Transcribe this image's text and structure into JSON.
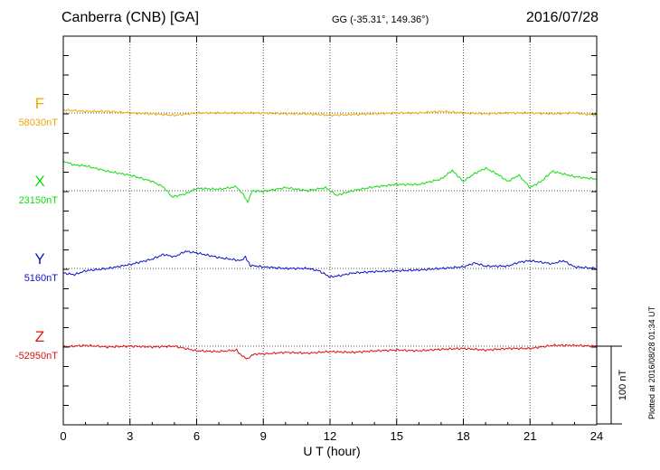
{
  "header": {
    "station": "Canberra (CNB)  [GA]",
    "coords": "GG (-35.31°, 149.36°)",
    "date": "2016/07/28"
  },
  "side_note": "Plotted at 2016/08/28 01:34 UT",
  "colors": {
    "F": "#f0a800",
    "X": "#11dd11",
    "Y": "#1111cc",
    "Z": "#dd1111"
  },
  "chart_data": {
    "type": "line",
    "title": "Canberra (CNB)  [GA]",
    "xlabel": "U T (hour)",
    "xlim": [
      0,
      24
    ],
    "x_ticks": [
      "0",
      "3",
      "6",
      "9",
      "12",
      "15",
      "18",
      "21",
      "24"
    ],
    "grid": true,
    "scale_bar": {
      "label": "100 nT",
      "nT": 100
    },
    "series": [
      {
        "name": "F",
        "baseline_label": "58030nT",
        "color": "#f0a800",
        "x": [
          0,
          1,
          2,
          3,
          4,
          5,
          6,
          7,
          8,
          9,
          10,
          11,
          12,
          13,
          14,
          15,
          16,
          17,
          18,
          19,
          20,
          21,
          22,
          23,
          24
        ],
        "y": [
          4,
          2,
          2,
          0,
          -1,
          -3,
          0,
          0,
          0,
          0,
          -1,
          -1,
          -3,
          -2,
          -1,
          0,
          0,
          2,
          0,
          -1,
          0,
          0,
          -1,
          0,
          -3
        ]
      },
      {
        "name": "X",
        "baseline_label": "23150nT",
        "color": "#11dd11",
        "x": [
          0,
          0.5,
          1,
          2,
          3,
          4,
          4.5,
          4.9,
          5.5,
          6,
          7,
          7.8,
          8.1,
          8.3,
          8.5,
          9,
          10,
          11,
          11.8,
          12.3,
          13,
          14,
          15,
          16,
          17,
          17.5,
          18,
          18.5,
          19,
          19.5,
          20,
          20.5,
          21,
          21.5,
          22,
          23,
          24
        ],
        "y": [
          38,
          33,
          32,
          25,
          20,
          12,
          5,
          -8,
          -4,
          3,
          2,
          5,
          -5,
          -15,
          0,
          -1,
          4,
          0,
          4,
          -6,
          0,
          5,
          8,
          8,
          15,
          26,
          12,
          22,
          29,
          22,
          12,
          20,
          4,
          12,
          25,
          18,
          15
        ]
      },
      {
        "name": "Y",
        "baseline_label": "5160nT",
        "color": "#1111cc",
        "x": [
          0,
          0.5,
          1,
          2,
          3,
          4,
          4.5,
          5,
          5.5,
          6,
          7,
          8,
          8.2,
          8.4,
          9,
          10,
          11,
          11.5,
          12,
          12.5,
          13,
          14,
          15,
          16,
          17,
          18,
          18.5,
          19,
          20,
          20.5,
          21,
          22,
          22.5,
          23,
          24
        ],
        "y": [
          -6,
          -8,
          -3,
          0,
          5,
          12,
          18,
          15,
          22,
          20,
          14,
          10,
          15,
          4,
          2,
          0,
          0,
          -3,
          -11,
          -9,
          -6,
          -4,
          -3,
          -2,
          0,
          2,
          7,
          3,
          3,
          8,
          10,
          6,
          10,
          2,
          0
        ]
      },
      {
        "name": "Z",
        "baseline_label": "-52950nT",
        "color": "#dd1111",
        "x": [
          0,
          1,
          2,
          3,
          4,
          5,
          6,
          7,
          7.8,
          8,
          8.3,
          8.6,
          9,
          10,
          11,
          12,
          13,
          14,
          15,
          16,
          17,
          18,
          19,
          20,
          21,
          22,
          23,
          24
        ],
        "y": [
          -1,
          1,
          -1,
          0,
          -1,
          0,
          -6,
          -7,
          -5,
          -12,
          -16,
          -10,
          -10,
          -8,
          -9,
          -7,
          -8,
          -6,
          -5,
          -6,
          -4,
          -3,
          -5,
          -3,
          -3,
          1,
          1,
          0
        ]
      }
    ]
  }
}
